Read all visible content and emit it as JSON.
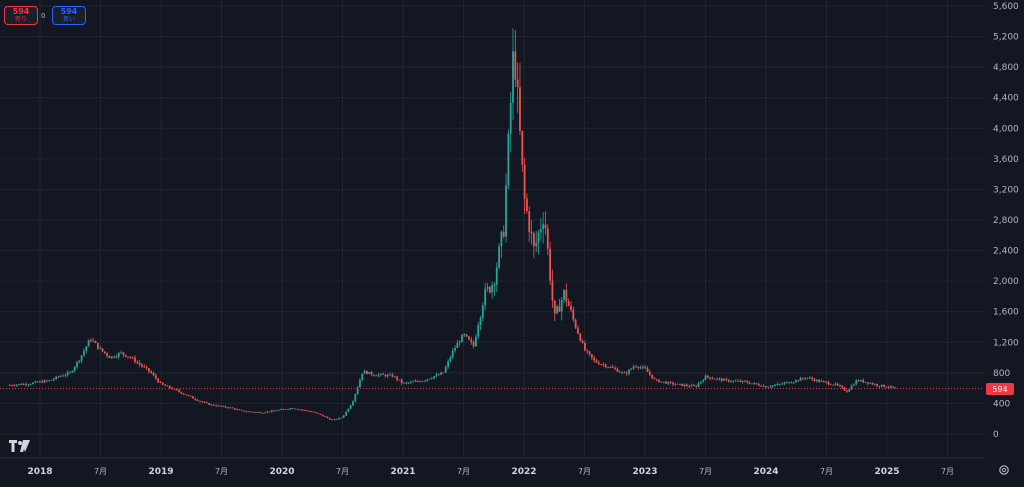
{
  "order_panel": {
    "sell_price": "594",
    "sell_label": "売り",
    "spread": "0",
    "buy_price": "594",
    "buy_label": "買い"
  },
  "last_price_label": "594",
  "logo_text": "TV",
  "colors": {
    "up": "#26a69a",
    "down": "#ef5350",
    "background": "#131722",
    "grid": "#1f2430",
    "axis_text": "#b2b5be",
    "price_line": "#f23645"
  },
  "icons": {
    "settings": "gear-icon",
    "logo": "tradingview-logo-icon"
  },
  "chart_data": {
    "type": "candlestick",
    "title": "",
    "xlabel": "",
    "ylabel": "",
    "ylim": [
      0,
      5600
    ],
    "xlim": [
      "2017-10",
      "2025-11"
    ],
    "grid": true,
    "y_ticks": [
      0,
      400,
      800,
      1200,
      1600,
      2000,
      2400,
      2800,
      3200,
      3600,
      4000,
      4400,
      4800,
      5200,
      5600
    ],
    "y_tick_labels": [
      "0",
      "400",
      "800",
      "1,200",
      "1,600",
      "2,000",
      "2,400",
      "2,800",
      "3,200",
      "3,600",
      "4,000",
      "4,400",
      "4,800",
      "5,200",
      "5,600"
    ],
    "x_ticks": [
      {
        "date": "2018-01",
        "label": "2018",
        "bold": true
      },
      {
        "date": "2018-07",
        "label": "7月"
      },
      {
        "date": "2019-01",
        "label": "2019",
        "bold": true
      },
      {
        "date": "2019-07",
        "label": "7月"
      },
      {
        "date": "2020-01",
        "label": "2020",
        "bold": true
      },
      {
        "date": "2020-07",
        "label": "7月"
      },
      {
        "date": "2021-01",
        "label": "2021",
        "bold": true
      },
      {
        "date": "2021-07",
        "label": "7月"
      },
      {
        "date": "2022-01",
        "label": "2022",
        "bold": true
      },
      {
        "date": "2022-07",
        "label": "7月"
      },
      {
        "date": "2023-01",
        "label": "2023",
        "bold": true
      },
      {
        "date": "2023-07",
        "label": "7月"
      },
      {
        "date": "2024-01",
        "label": "2024",
        "bold": true
      },
      {
        "date": "2024-07",
        "label": "7月"
      },
      {
        "date": "2025-01",
        "label": "2025",
        "bold": true
      },
      {
        "date": "2025-07",
        "label": "7月"
      }
    ],
    "last_price": 594,
    "series": [
      {
        "name": "",
        "close_path": [
          [
            "2017-10",
            640
          ],
          [
            "2017-12",
            660
          ],
          [
            "2018-02",
            700
          ],
          [
            "2018-03",
            760
          ],
          [
            "2018-04",
            800
          ],
          [
            "2018-05",
            1000
          ],
          [
            "2018-06",
            1250
          ],
          [
            "2018-07",
            1100
          ],
          [
            "2018-08",
            1000
          ],
          [
            "2018-09",
            1060
          ],
          [
            "2018-10",
            1000
          ],
          [
            "2018-11",
            900
          ],
          [
            "2018-12",
            800
          ],
          [
            "2019-01",
            650
          ],
          [
            "2019-02",
            600
          ],
          [
            "2019-04",
            480
          ],
          [
            "2019-05",
            420
          ],
          [
            "2019-06",
            380
          ],
          [
            "2019-08",
            340
          ],
          [
            "2019-09",
            300
          ],
          [
            "2019-11",
            280
          ],
          [
            "2020-01",
            320
          ],
          [
            "2020-02",
            340
          ],
          [
            "2020-04",
            290
          ],
          [
            "2020-05",
            240
          ],
          [
            "2020-06",
            180
          ],
          [
            "2020-07",
            220
          ],
          [
            "2020-08",
            420
          ],
          [
            "2020-09",
            820
          ],
          [
            "2020-10",
            780
          ],
          [
            "2020-12",
            760
          ],
          [
            "2021-01",
            660
          ],
          [
            "2021-03",
            700
          ],
          [
            "2021-05",
            800
          ],
          [
            "2021-06",
            1100
          ],
          [
            "2021-07",
            1300
          ],
          [
            "2021-08",
            1150
          ],
          [
            "2021-09",
            1800
          ],
          [
            "2021-10",
            2000
          ],
          [
            "2021-11",
            2700
          ],
          [
            "2021-12",
            5100
          ],
          [
            "2022-01",
            3100
          ],
          [
            "2022-02",
            2400
          ],
          [
            "2022-03",
            2900
          ],
          [
            "2022-04",
            1500
          ],
          [
            "2022-05",
            1850
          ],
          [
            "2022-06",
            1450
          ],
          [
            "2022-07",
            1100
          ],
          [
            "2022-08",
            950
          ],
          [
            "2022-10",
            850
          ],
          [
            "2022-11",
            780
          ],
          [
            "2022-12",
            900
          ],
          [
            "2023-01",
            850
          ],
          [
            "2023-02",
            700
          ],
          [
            "2023-04",
            650
          ],
          [
            "2023-06",
            620
          ],
          [
            "2023-07",
            750
          ],
          [
            "2023-09",
            700
          ],
          [
            "2023-11",
            680
          ],
          [
            "2024-01",
            620
          ],
          [
            "2024-02",
            640
          ],
          [
            "2024-04",
            700
          ],
          [
            "2024-05",
            740
          ],
          [
            "2024-06",
            700
          ],
          [
            "2024-08",
            640
          ],
          [
            "2024-09",
            560
          ],
          [
            "2024-10",
            700
          ],
          [
            "2024-11",
            680
          ],
          [
            "2024-12",
            640
          ],
          [
            "2025-01",
            620
          ],
          [
            "2025-02",
            594
          ]
        ]
      }
    ]
  }
}
